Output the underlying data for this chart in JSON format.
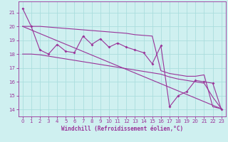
{
  "xlabel": "Windchill (Refroidissement éolien,°C)",
  "bg_color": "#cff0f0",
  "grid_color": "#aadddd",
  "line_color": "#993399",
  "xlim": [
    -0.5,
    23.5
  ],
  "ylim": [
    13.5,
    21.8
  ],
  "yticks": [
    14,
    15,
    16,
    17,
    18,
    19,
    20,
    21
  ],
  "xticks": [
    0,
    1,
    2,
    3,
    4,
    5,
    6,
    7,
    8,
    9,
    10,
    11,
    12,
    13,
    14,
    15,
    16,
    17,
    18,
    19,
    20,
    21,
    22,
    23
  ],
  "x_data": [
    0,
    1,
    2,
    3,
    4,
    5,
    6,
    7,
    8,
    9,
    10,
    11,
    12,
    13,
    14,
    15,
    16,
    17,
    18,
    19,
    20,
    21,
    22,
    23
  ],
  "y_jagged": [
    21.3,
    20.0,
    18.3,
    18.0,
    18.7,
    18.2,
    18.1,
    19.3,
    18.7,
    19.1,
    18.5,
    18.8,
    18.5,
    18.3,
    18.1,
    17.3,
    18.6,
    14.2,
    15.0,
    15.3,
    16.1,
    16.0,
    15.9,
    14.0
  ],
  "y_upper": [
    20.0,
    20.0,
    20.0,
    19.95,
    19.9,
    19.85,
    19.8,
    19.75,
    19.7,
    19.65,
    19.6,
    19.55,
    19.5,
    19.4,
    19.35,
    19.3,
    16.8,
    16.6,
    16.5,
    16.4,
    16.4,
    16.5,
    14.2,
    14.05
  ],
  "y_lower": [
    18.0,
    18.0,
    17.95,
    17.85,
    17.75,
    17.65,
    17.55,
    17.45,
    17.35,
    17.25,
    17.15,
    17.05,
    16.95,
    16.85,
    16.75,
    16.65,
    16.55,
    16.35,
    16.2,
    16.1,
    16.0,
    15.9,
    14.9,
    14.05
  ],
  "y_linear_start": 20.0,
  "y_linear_end": 14.05
}
